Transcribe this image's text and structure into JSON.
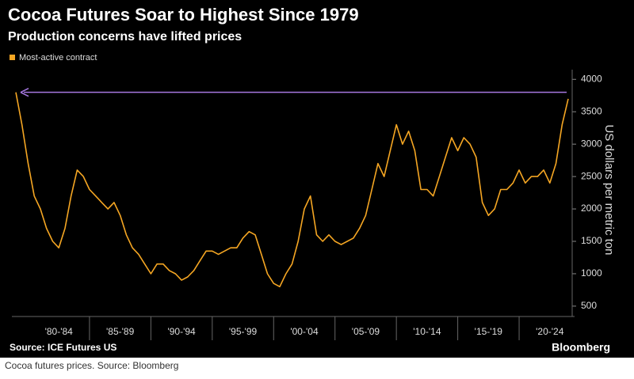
{
  "chart_data": {
    "type": "line",
    "title": "Cocoa Futures Soar to Highest Since 1979",
    "subtitle": "Production concerns have lifted prices",
    "y_label": "US dollars per metric ton",
    "source": "Source: ICE Futures US",
    "brand": "Bloomberg",
    "caption": "Cocoa futures prices. Source: Bloomberg",
    "categories": [
      null,
      null,
      null,
      null,
      null,
      null,
      null,
      "'80-'84",
      null,
      null,
      null,
      null,
      null,
      null,
      null,
      null,
      null,
      "'85-'89",
      null,
      null,
      null,
      null,
      null,
      null,
      null,
      null,
      null,
      "'90-'94",
      null,
      null,
      null,
      null,
      null,
      null,
      null,
      null,
      null,
      "'95-'99",
      null,
      null,
      null,
      null,
      null,
      null,
      null,
      null,
      null,
      "'00-'04",
      null,
      null,
      null,
      null,
      null,
      null,
      null,
      null,
      null,
      "'05-'09",
      null,
      null,
      null,
      null,
      null,
      null,
      null,
      null,
      null,
      "'10-'14",
      null,
      null,
      null,
      null,
      null,
      null,
      null,
      null,
      null,
      "'15-'19",
      null,
      null,
      null,
      null,
      null,
      null,
      null,
      null,
      null,
      "'20-'24",
      null,
      null,
      null
    ],
    "series": [
      {
        "name": "Most-active contract",
        "color": "#f5a623",
        "values": [
          3800,
          3300,
          2700,
          2200,
          2000,
          1700,
          1500,
          1400,
          1700,
          2200,
          2600,
          2500,
          2300,
          2200,
          2100,
          2000,
          2100,
          1900,
          1600,
          1400,
          1300,
          1150,
          1000,
          1150,
          1150,
          1050,
          1000,
          900,
          950,
          1050,
          1200,
          1350,
          1350,
          1300,
          1350,
          1400,
          1400,
          1550,
          1650,
          1600,
          1300,
          1000,
          850,
          800,
          1000,
          1150,
          1500,
          2000,
          2200,
          1600,
          1500,
          1600,
          1500,
          1450,
          1500,
          1550,
          1700,
          1900,
          2300,
          2700,
          2500,
          2900,
          3300,
          3000,
          3200,
          2900,
          2300,
          2300,
          2200,
          2500,
          2800,
          3100,
          2900,
          3100,
          3000,
          2800,
          2100,
          1900,
          2000,
          2300,
          2300,
          2400,
          2600,
          2400,
          2500,
          2500,
          2600,
          2400,
          2700,
          3300,
          3700
        ]
      }
    ],
    "reference_arrow": {
      "value": 3800,
      "color": "#a678e0"
    },
    "ylim": [
      340,
      4150
    ],
    "yticks": [
      500,
      1000,
      1500,
      2000,
      2500,
      3000,
      3500,
      4000
    ],
    "y_axis_side": "right"
  }
}
